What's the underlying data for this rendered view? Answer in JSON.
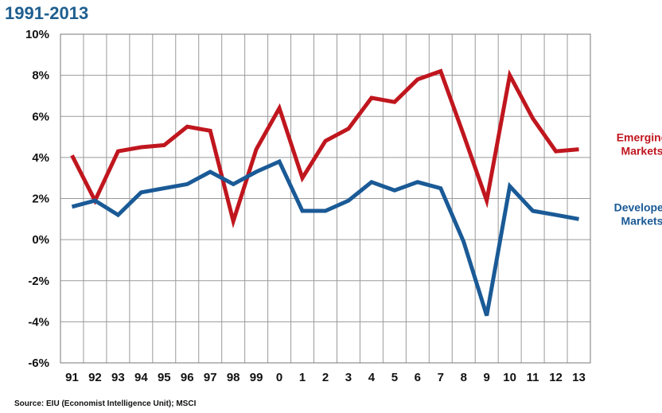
{
  "title": "1991-2013",
  "source": "Source: EIU (Economist Intelligence Unit); MSCI",
  "chart_data": {
    "type": "line",
    "categories": [
      "91",
      "92",
      "93",
      "94",
      "95",
      "96",
      "97",
      "98",
      "99",
      "0",
      "1",
      "2",
      "3",
      "4",
      "5",
      "6",
      "7",
      "8",
      "9",
      "10",
      "11",
      "12",
      "13"
    ],
    "series": [
      {
        "name": "Emerging Markets",
        "label_lines": [
          "Emerging",
          "Markets"
        ],
        "color": "#c0161e",
        "values": [
          4.1,
          1.9,
          4.3,
          4.5,
          4.6,
          5.5,
          5.3,
          0.9,
          4.4,
          6.4,
          3.0,
          4.8,
          5.4,
          6.9,
          6.7,
          7.8,
          8.2,
          5.1,
          1.9,
          8.0,
          5.9,
          4.3,
          4.4
        ]
      },
      {
        "name": "Developed Markets",
        "label_lines": [
          "Developed",
          "Markets"
        ],
        "color": "#1a5a96",
        "values": [
          1.6,
          1.9,
          1.2,
          2.3,
          2.5,
          2.7,
          3.3,
          2.7,
          3.3,
          3.8,
          1.4,
          1.4,
          1.9,
          2.8,
          2.4,
          2.8,
          2.5,
          -0.1,
          -3.7,
          2.6,
          1.4,
          1.2,
          1.0
        ]
      }
    ],
    "yticks": [
      "-6%",
      "-4%",
      "-2%",
      "0%",
      "2%",
      "4%",
      "6%",
      "8%",
      "10%"
    ],
    "ylim": [
      -6,
      10
    ],
    "grid": true,
    "legend": "right, next to line ends"
  }
}
